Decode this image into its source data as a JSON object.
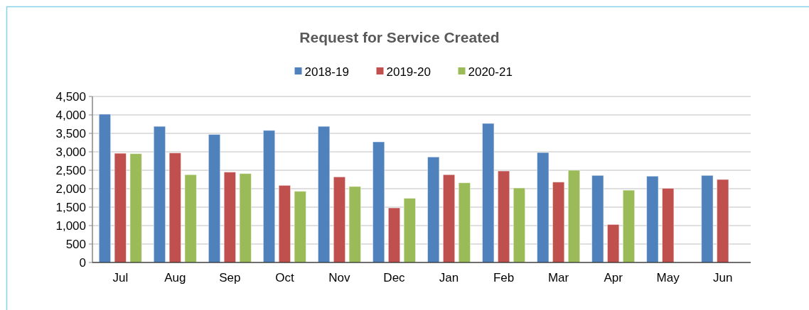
{
  "chart_data": {
    "type": "bar",
    "title": "Request for Service Created",
    "categories": [
      "Jul",
      "Aug",
      "Sep",
      "Oct",
      "Nov",
      "Dec",
      "Jan",
      "Feb",
      "Mar",
      "Apr",
      "May",
      "Jun"
    ],
    "series": [
      {
        "name": "2018-19",
        "color": "#4f81bd",
        "values": [
          4020,
          3690,
          3470,
          3580,
          3690,
          3270,
          2860,
          3770,
          2980,
          2360,
          2340,
          2360
        ]
      },
      {
        "name": "2019-20",
        "color": "#c0504d",
        "values": [
          2960,
          2970,
          2450,
          2090,
          2320,
          1480,
          2380,
          2480,
          2180,
          1030,
          2010,
          2250
        ]
      },
      {
        "name": "2020-21",
        "color": "#9bbb59",
        "values": [
          2950,
          2380,
          2410,
          1930,
          2060,
          1740,
          2160,
          2020,
          2500,
          1960,
          null,
          null
        ]
      }
    ],
    "ylim": [
      0,
      4500
    ],
    "yticks": [
      {
        "value": 0,
        "label": "0"
      },
      {
        "value": 500,
        "label": "500"
      },
      {
        "value": 1000,
        "label": "1,000"
      },
      {
        "value": 1500,
        "label": "1,500"
      },
      {
        "value": 2000,
        "label": "2,000"
      },
      {
        "value": 2500,
        "label": "2,500"
      },
      {
        "value": 3000,
        "label": "3,000"
      },
      {
        "value": 3500,
        "label": "3,500"
      },
      {
        "value": 4000,
        "label": "4,000"
      },
      {
        "value": 4500,
        "label": "4,500"
      }
    ],
    "grid": "y",
    "legend": "top"
  }
}
